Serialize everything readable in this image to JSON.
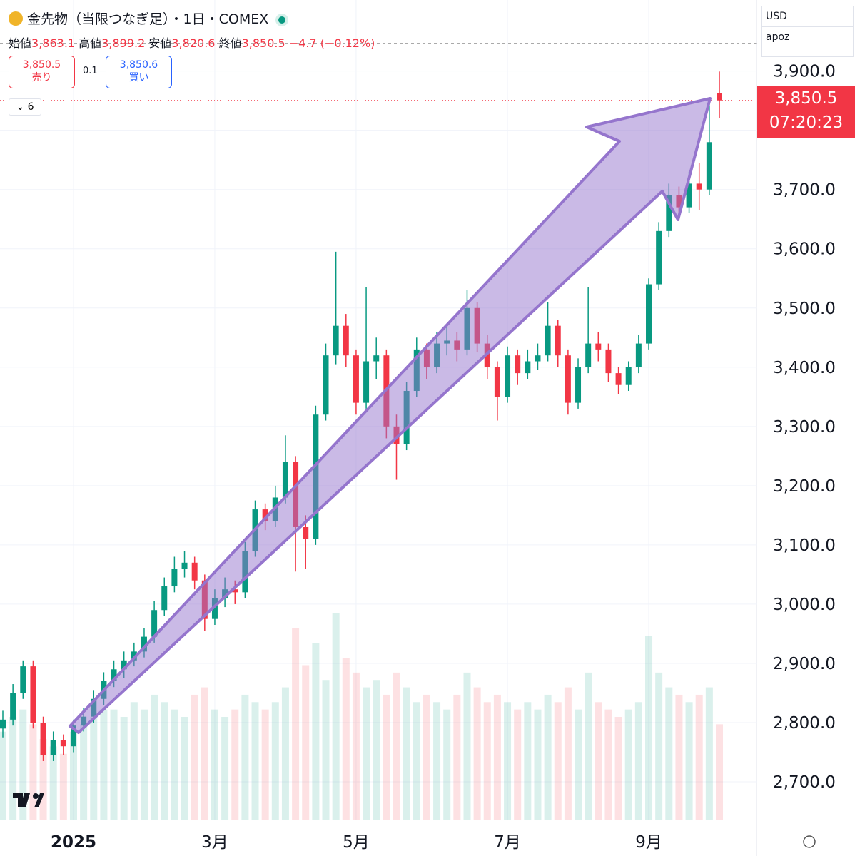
{
  "chart_data": {
    "type": "candlestick",
    "header": {
      "title": "金先物（当限つなぎ足）・1日・COMEX",
      "open_label": "始値",
      "open": "3,863.1",
      "high_label": "高値",
      "high": "3,899.2",
      "low_label": "安値",
      "low": "3,820.6",
      "close_label": "終値",
      "close": "3,850.5",
      "change": "−4.7 (−0.12%)",
      "sell_price": "3,850.5",
      "sell": "売り",
      "spread": "0.1",
      "buy_price": "3,850.6",
      "buy": "買い",
      "indicators": "6",
      "currency": "USD",
      "user": "apoz",
      "last_price": "3,850.5",
      "countdown": "07:20:23"
    },
    "categories": [
      null,
      null,
      null,
      null,
      null,
      null,
      null,
      "2025",
      null,
      null,
      null,
      null,
      null,
      null,
      null,
      null,
      null,
      null,
      null,
      null,
      null,
      "3月",
      null,
      null,
      null,
      null,
      null,
      null,
      null,
      null,
      null,
      null,
      null,
      null,
      null,
      "5月",
      null,
      null,
      null,
      null,
      null,
      null,
      null,
      null,
      null,
      null,
      null,
      null,
      null,
      null,
      "7月",
      null,
      null,
      null,
      null,
      null,
      null,
      null,
      null,
      null,
      null,
      null,
      null,
      null,
      "9月",
      null,
      null,
      null,
      null,
      null,
      null,
      null
    ],
    "open": [
      2790,
      2805,
      2850,
      2895,
      2800,
      2745,
      2770,
      2760,
      2795,
      2810,
      2840,
      2870,
      2890,
      2905,
      2920,
      2945,
      2990,
      3030,
      3060,
      3070,
      3040,
      2975,
      3010,
      3025,
      3020,
      3090,
      3160,
      3140,
      3180,
      3240,
      3130,
      3110,
      3320,
      3420,
      3470,
      3420,
      3340,
      3410,
      3420,
      3300,
      3270,
      3360,
      3430,
      3400,
      3440,
      3445,
      3430,
      3500,
      3440,
      3400,
      3350,
      3420,
      3390,
      3410,
      3420,
      3470,
      3420,
      3340,
      3400,
      3440,
      3430,
      3390,
      3370,
      3400,
      3440,
      3540,
      3630,
      3690,
      3670,
      3710,
      3700,
      3863.1
    ],
    "high": [
      2820,
      2865,
      2905,
      2905,
      2810,
      2785,
      2780,
      2805,
      2825,
      2855,
      2885,
      2905,
      2920,
      2935,
      2960,
      3005,
      3045,
      3080,
      3090,
      3080,
      3050,
      3025,
      3045,
      3040,
      3105,
      3175,
      3170,
      3200,
      3285,
      3250,
      3150,
      3335,
      3440,
      3595,
      3490,
      3430,
      3535,
      3450,
      3430,
      3320,
      3375,
      3450,
      3440,
      3460,
      3470,
      3460,
      3530,
      3510,
      3455,
      3410,
      3435,
      3430,
      3430,
      3440,
      3510,
      3480,
      3430,
      3415,
      3535,
      3460,
      3440,
      3400,
      3410,
      3455,
      3550,
      3645,
      3710,
      3705,
      3730,
      3745,
      3850,
      3899.2
    ],
    "low": [
      2775,
      2795,
      2840,
      2790,
      2735,
      2735,
      2745,
      2750,
      2785,
      2800,
      2830,
      2860,
      2875,
      2895,
      2910,
      2935,
      2980,
      3020,
      3045,
      3025,
      2955,
      2965,
      2995,
      3000,
      3010,
      3080,
      3125,
      3130,
      3170,
      3055,
      3060,
      3100,
      3310,
      3405,
      3400,
      3320,
      3330,
      3380,
      3280,
      3210,
      3260,
      3350,
      3380,
      3390,
      3420,
      3410,
      3420,
      3425,
      3380,
      3310,
      3340,
      3370,
      3380,
      3395,
      3410,
      3400,
      3320,
      3330,
      3390,
      3410,
      3375,
      3355,
      3360,
      3390,
      3430,
      3530,
      3620,
      3650,
      3660,
      3665,
      3690,
      3820.6
    ],
    "close": [
      2805,
      2850,
      2895,
      2800,
      2745,
      2770,
      2760,
      2795,
      2810,
      2840,
      2870,
      2890,
      2905,
      2920,
      2945,
      2990,
      3030,
      3060,
      3070,
      3040,
      2975,
      3010,
      3025,
      3020,
      3090,
      3160,
      3140,
      3180,
      3240,
      3130,
      3110,
      3320,
      3420,
      3470,
      3420,
      3340,
      3410,
      3420,
      3300,
      3270,
      3360,
      3430,
      3400,
      3440,
      3445,
      3430,
      3500,
      3440,
      3400,
      3350,
      3420,
      3390,
      3410,
      3420,
      3470,
      3420,
      3340,
      3400,
      3440,
      3430,
      3390,
      3370,
      3400,
      3440,
      3540,
      3630,
      3690,
      3670,
      3710,
      3700,
      3780,
      3850.5
    ],
    "volume": [
      120,
      140,
      150,
      130,
      110,
      100,
      90,
      120,
      130,
      140,
      150,
      150,
      140,
      160,
      150,
      170,
      160,
      150,
      140,
      170,
      180,
      150,
      140,
      150,
      170,
      160,
      150,
      160,
      180,
      260,
      210,
      240,
      190,
      280,
      220,
      200,
      180,
      190,
      170,
      200,
      180,
      160,
      170,
      160,
      150,
      170,
      200,
      180,
      160,
      170,
      160,
      150,
      160,
      150,
      170,
      160,
      180,
      150,
      200,
      160,
      150,
      140,
      150,
      160,
      250,
      200,
      180,
      170,
      160,
      170,
      180,
      130
    ],
    "up_color": "#089981",
    "down_color": "#f23645",
    "ylim": [
      2635,
      4020
    ],
    "yticks": [
      {
        "value": 2700,
        "label": "2,700.0"
      },
      {
        "value": 2800,
        "label": "2,800.0"
      },
      {
        "value": 2900,
        "label": "2,900.0"
      },
      {
        "value": 3000,
        "label": "3,000.0"
      },
      {
        "value": 3100,
        "label": "3,100.0"
      },
      {
        "value": 3200,
        "label": "3,200.0"
      },
      {
        "value": 3300,
        "label": "3,300.0"
      },
      {
        "value": 3400,
        "label": "3,400.0"
      },
      {
        "value": 3500,
        "label": "3,500.0"
      },
      {
        "value": 3600,
        "label": "3,600.0"
      },
      {
        "value": 3700,
        "label": "3,700.0"
      },
      {
        "value": 3800,
        "label": "3,800.0"
      },
      {
        "value": 3900,
        "label": "3,900.0"
      }
    ],
    "grid": true
  }
}
